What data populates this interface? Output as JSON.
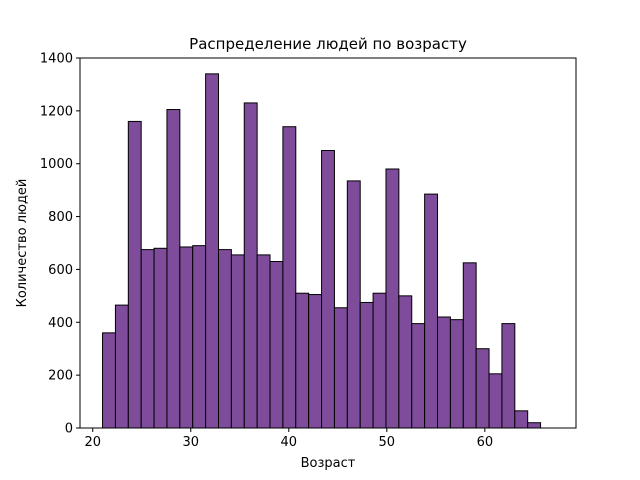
{
  "chart_data": {
    "type": "bar",
    "title": "Распределение людей по возрасту",
    "xlabel": "Возраст",
    "ylabel": "Количество людей",
    "bar_color": "#7f4c9c",
    "edge_color": "#000000",
    "xlim": [
      18.7,
      69.3
    ],
    "ylim": [
      0,
      1400
    ],
    "xticks": [
      20,
      30,
      40,
      50,
      60
    ],
    "yticks": [
      0,
      200,
      400,
      600,
      800,
      1000,
      1200,
      1400
    ],
    "bin_start": 21,
    "bin_width": 1.3143,
    "values": [
      360,
      465,
      1160,
      675,
      680,
      1205,
      685,
      690,
      1340,
      675,
      655,
      1230,
      655,
      630,
      1140,
      510,
      505,
      1050,
      455,
      935,
      475,
      510,
      980,
      500,
      395,
      885,
      420,
      410,
      625,
      300,
      205,
      395,
      65,
      20
    ],
    "grid": false,
    "legend": "none"
  }
}
